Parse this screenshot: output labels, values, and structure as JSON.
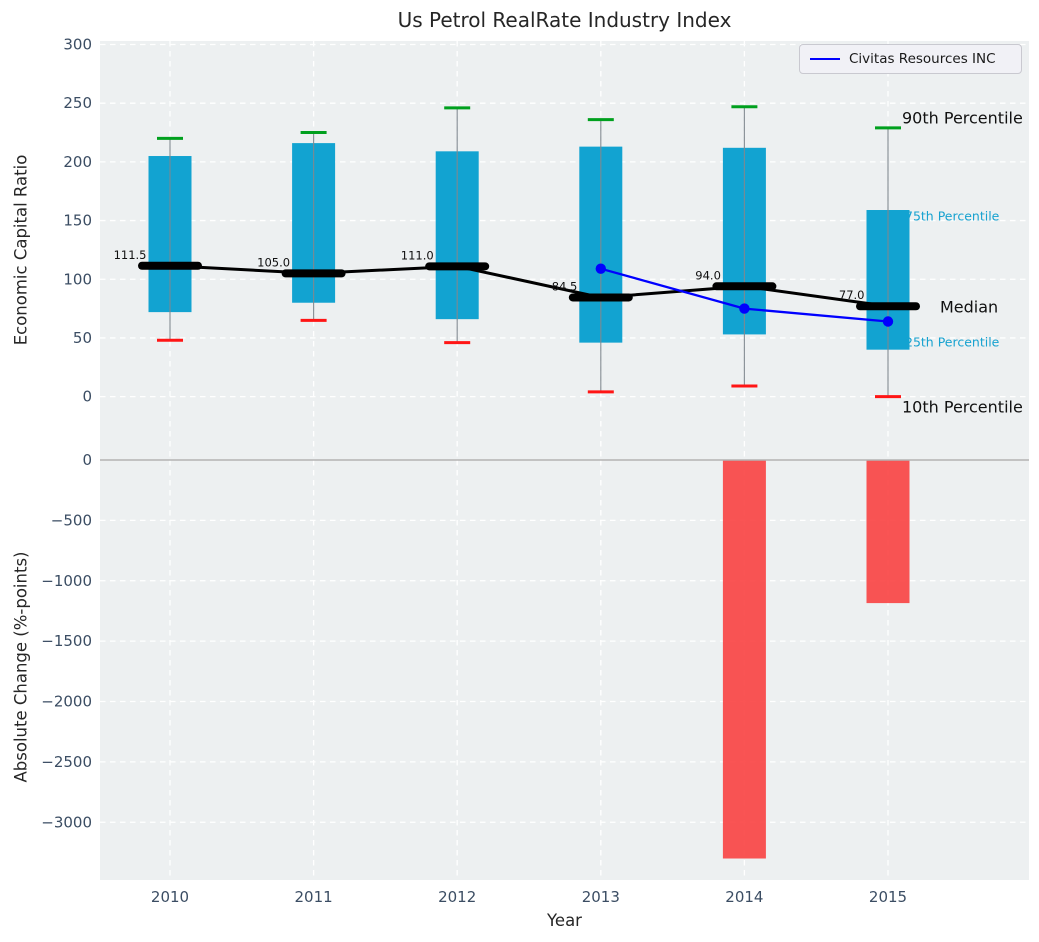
{
  "title": "Us Petrol RealRate Industry Index",
  "legend": {
    "label": "Civitas Resources INC"
  },
  "annotations": {
    "p90": "90th Percentile",
    "p75": "75th Percentile",
    "median": "Median",
    "p25": "25th Percentile",
    "p10": "10th Percentile"
  },
  "colors": {
    "box": "#0aa0cf",
    "bar": "#f93c3c",
    "cap_high": "#00a01e",
    "cap_low": "#ff1515",
    "median_line": "#000000",
    "company_line": "#0000ff",
    "panel_bg": "#edf0f1",
    "grid": "#ffffff",
    "tick_label": "#3b4d63",
    "whisker": "#80888f",
    "zero_line": "#b3b3b3",
    "annotation_cyan": "#17a2d0"
  },
  "chart_data": [
    {
      "type": "box",
      "panel": "top",
      "title": "Us Petrol RealRate Industry Index",
      "ylabel": "Economic Capital Ratio",
      "categories": [
        "2010",
        "2011",
        "2012",
        "2013",
        "2014",
        "2015"
      ],
      "yticks": [
        0,
        50,
        100,
        150,
        200,
        250,
        300
      ],
      "ytick_labels": [
        "0",
        "50",
        "100",
        "150",
        "200",
        "250",
        "300"
      ],
      "ylim": [
        -54,
        303
      ],
      "grid": true,
      "legend_position": "upper right",
      "series": [
        {
          "name": "90th Percentile",
          "values": [
            220,
            225,
            246,
            236,
            247,
            229
          ]
        },
        {
          "name": "75th Percentile",
          "values": [
            205,
            216,
            209,
            213,
            212,
            159
          ]
        },
        {
          "name": "Median",
          "values": [
            111.5,
            105.0,
            111.0,
            84.5,
            94.0,
            77.0
          ]
        },
        {
          "name": "25th Percentile",
          "values": [
            72,
            80,
            66,
            46,
            53,
            40
          ]
        },
        {
          "name": "10th Percentile",
          "values": [
            48,
            65,
            46,
            4,
            9,
            0
          ]
        }
      ],
      "median_labels": [
        "111.5",
        "105.0",
        "111.0",
        "84.5",
        "94.0",
        "77.0"
      ],
      "company_series": {
        "name": "Civitas Resources INC",
        "categories": [
          "2013",
          "2014",
          "2015"
        ],
        "values": [
          109,
          75,
          64
        ]
      }
    },
    {
      "type": "bar",
      "panel": "bottom",
      "ylabel": "Absolute Change (%-points)",
      "xlabel": "Year",
      "categories": [
        "2010",
        "2011",
        "2012",
        "2013",
        "2014",
        "2015"
      ],
      "values": [
        0,
        0,
        0,
        0,
        -3300,
        -1185
      ],
      "yticks": [
        0,
        -500,
        -1000,
        -1500,
        -2000,
        -2500,
        -3000
      ],
      "ytick_labels": [
        "0",
        "−500",
        "−1000",
        "−1500",
        "−2000",
        "−2500",
        "−3000"
      ],
      "ylim": [
        -3478,
        0
      ],
      "grid": true
    }
  ]
}
